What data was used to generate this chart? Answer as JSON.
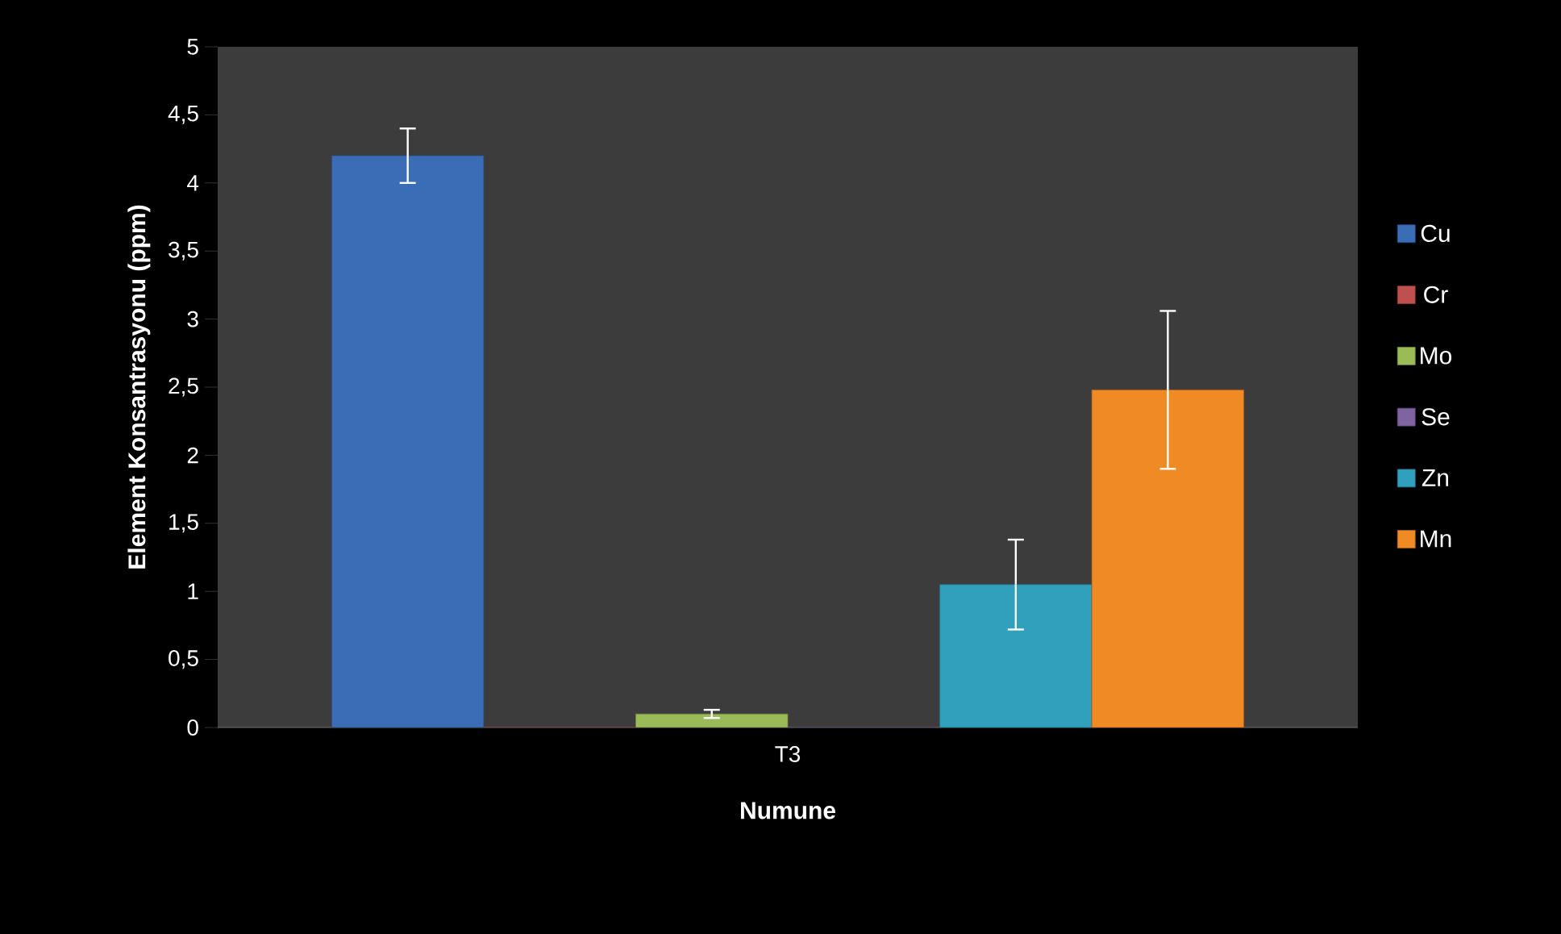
{
  "chart_data": {
    "type": "bar",
    "xlabel": "Numune",
    "ylabel": "Element Konsantrasyonu (ppm)",
    "categories": [
      "T3"
    ],
    "series": [
      {
        "name": "Cu",
        "color": "#3a6db5",
        "values": [
          4.2
        ],
        "errors": [
          0.2
        ]
      },
      {
        "name": "Cr",
        "color": "#c0504d",
        "values": [
          0
        ],
        "errors": [
          null
        ]
      },
      {
        "name": "Mo",
        "color": "#9bbb59",
        "values": [
          0.1
        ],
        "errors": [
          0.03
        ]
      },
      {
        "name": "Se",
        "color": "#8064a2",
        "values": [
          0
        ],
        "errors": [
          null
        ]
      },
      {
        "name": "Zn",
        "color": "#31a0bd",
        "values": [
          1.05
        ],
        "errors": [
          0.33
        ]
      },
      {
        "name": "Mn",
        "color": "#f08a24",
        "values": [
          2.48
        ],
        "errors": [
          0.58
        ]
      }
    ],
    "ylim": [
      0,
      5
    ],
    "yticks": [
      0,
      {
        "value": 0.5,
        "label": "0,5"
      },
      1,
      {
        "value": 1.5,
        "label": "1,5"
      },
      2,
      {
        "value": 2.5,
        "label": "2,5"
      },
      3,
      {
        "value": 3.5,
        "label": "3,5"
      },
      4,
      {
        "value": 4.5,
        "label": "4,5"
      },
      5
    ],
    "grid": false,
    "legend": "right"
  }
}
